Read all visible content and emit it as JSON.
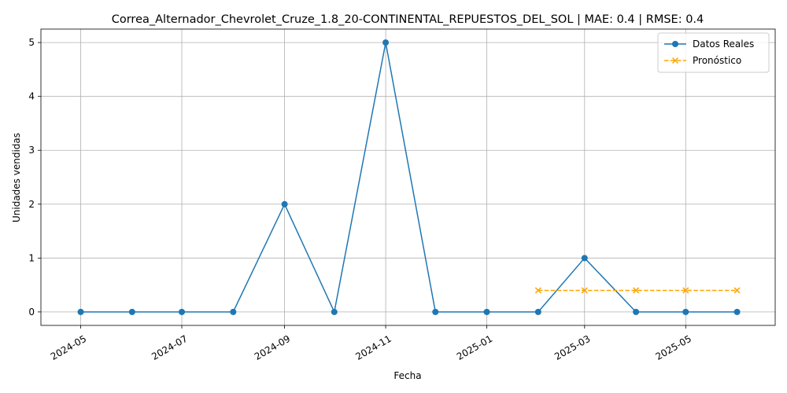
{
  "chart_data": {
    "type": "line",
    "title": "Correa_Alternador_Chevrolet_Cruze_1.8_20-CONTINENTAL_REPUESTOS_DEL_SOL | MAE: 0.4 | RMSE: 0.4",
    "xlabel": "Fecha",
    "ylabel": "Unidades vendidas",
    "xlim": [
      "2024-04-07",
      "2025-06-24"
    ],
    "ylim": [
      -0.25,
      5.25
    ],
    "grid": true,
    "legend_position": "top-right",
    "x_ticks": [
      "2024-05",
      "2024-07",
      "2024-09",
      "2024-11",
      "2025-01",
      "2025-03",
      "2025-05"
    ],
    "y_ticks": [
      0,
      1,
      2,
      3,
      4,
      5
    ],
    "series": [
      {
        "name": "Datos Reales",
        "color": "#1f77b4",
        "marker": "circle",
        "linestyle": "solid",
        "x": [
          "2024-05-01",
          "2024-06-01",
          "2024-07-01",
          "2024-08-01",
          "2024-09-01",
          "2024-10-01",
          "2024-11-01",
          "2024-12-01",
          "2025-01-01",
          "2025-02-01",
          "2025-03-01",
          "2025-04-01",
          "2025-05-01",
          "2025-06-01"
        ],
        "values": [
          0,
          0,
          0,
          0,
          2,
          0,
          5,
          0,
          0,
          0,
          1,
          0,
          0,
          0
        ]
      },
      {
        "name": "Pronóstico",
        "color": "#ffa500",
        "marker": "x",
        "linestyle": "dashed",
        "x": [
          "2025-02-01",
          "2025-03-01",
          "2025-04-01",
          "2025-05-01",
          "2025-06-01"
        ],
        "values": [
          0.4,
          0.4,
          0.4,
          0.4,
          0.4
        ]
      }
    ]
  }
}
